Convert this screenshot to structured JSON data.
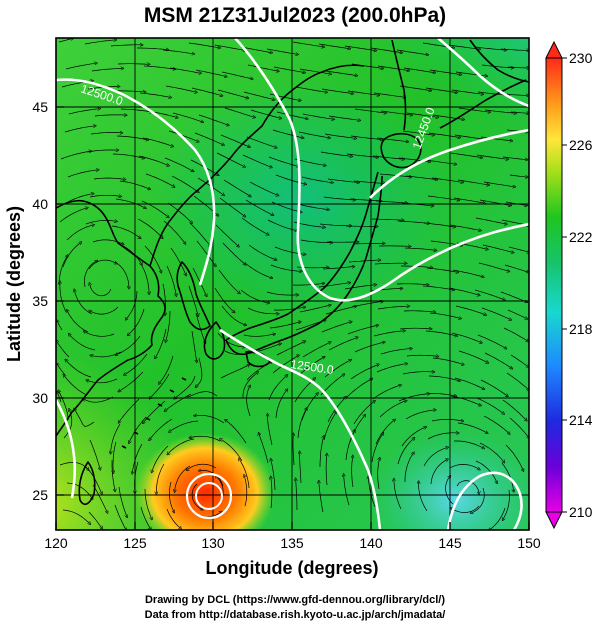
{
  "title": "MSM 21Z31Jul2023 (200.0hPa)",
  "axes": {
    "xlabel": "Longitude (degrees)",
    "ylabel": "Latitude  (degrees)",
    "x_ticks": [
      "120",
      "125",
      "130",
      "135",
      "140",
      "145",
      "150"
    ],
    "y_ticks": [
      "25",
      "30",
      "35",
      "40",
      "45"
    ]
  },
  "colorbar": {
    "ticks": [
      "230",
      "226",
      "222",
      "218",
      "214",
      "210"
    ],
    "range": [
      210,
      230
    ]
  },
  "contours": {
    "label_1": "12500.0",
    "label_2": "12500.0",
    "label_3": "12450.0"
  },
  "footer": {
    "line1": "Drawing by DCL (https://www.gfd-dennou.org/library/dcl/)",
    "line2": "Data from http://database.rish.kyoto-u.ac.jp/arch/jmadata/"
  },
  "colors": {
    "warm_core": "#ff3b00",
    "green": "#22c02a",
    "cool_ne": "#1e78ff",
    "contour": "#ffffff",
    "coast": "#000000"
  }
}
